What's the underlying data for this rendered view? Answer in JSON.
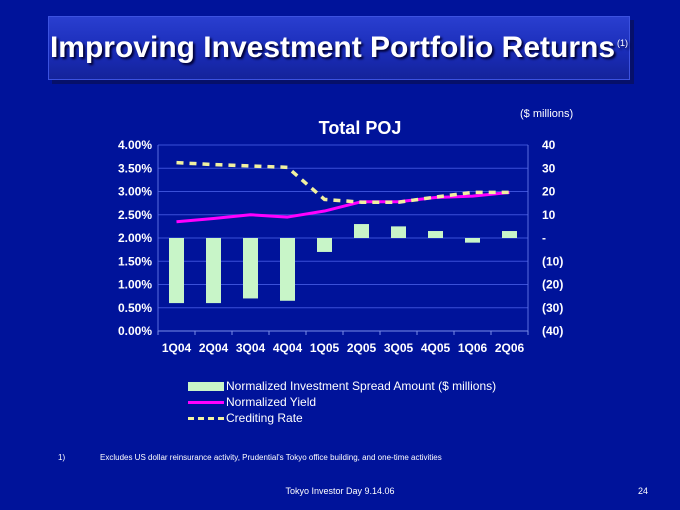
{
  "slide": {
    "title": "Improving Investment Portfolio Returns",
    "title_superscript": "(1)",
    "units": "($ millions)",
    "footnote_number": "1)",
    "footnote_text": "Excludes US dollar reinsurance activity, Prudential's Tokyo office building, and one-time activities",
    "footer": "Tokyo Investor Day 9.14.06",
    "page_number": "24"
  },
  "colors": {
    "background": "#00139a",
    "bars": "#c8f5c8",
    "yield_line": "#ff00ff",
    "crediting_line": "#f0f0a0"
  },
  "chart_data": {
    "type": "bar",
    "title": "Total POJ",
    "categories": [
      "1Q04",
      "2Q04",
      "3Q04",
      "4Q04",
      "1Q05",
      "2Q05",
      "3Q05",
      "4Q05",
      "1Q06",
      "2Q06"
    ],
    "y_left": {
      "ticks": [
        "4.00%",
        "3.50%",
        "3.00%",
        "2.50%",
        "2.00%",
        "1.50%",
        "1.00%",
        "0.50%",
        "0.00%"
      ],
      "range": [
        0,
        4
      ]
    },
    "y_right": {
      "ticks": [
        "40",
        "30",
        "20",
        "10",
        "-",
        "(10)",
        "(20)",
        "(30)",
        "(40)"
      ],
      "range": [
        -40,
        40
      ]
    },
    "grid": true,
    "series": [
      {
        "name": "Normalized Investment Spread Amount ($ millions)",
        "kind": "bar",
        "axis": "right",
        "values": [
          -28,
          -28,
          -26,
          -27,
          -6,
          6,
          5,
          3,
          -2,
          3
        ]
      },
      {
        "name": "Normalized Yield",
        "kind": "line",
        "axis": "left",
        "values": [
          2.35,
          2.42,
          2.5,
          2.45,
          2.58,
          2.78,
          2.78,
          2.87,
          2.9,
          2.98
        ]
      },
      {
        "name": "Crediting Rate",
        "kind": "dashed-line",
        "axis": "left",
        "values": [
          3.62,
          3.58,
          3.55,
          3.52,
          2.83,
          2.77,
          2.77,
          2.88,
          2.98,
          2.98
        ]
      }
    ],
    "legend": "bottom"
  }
}
